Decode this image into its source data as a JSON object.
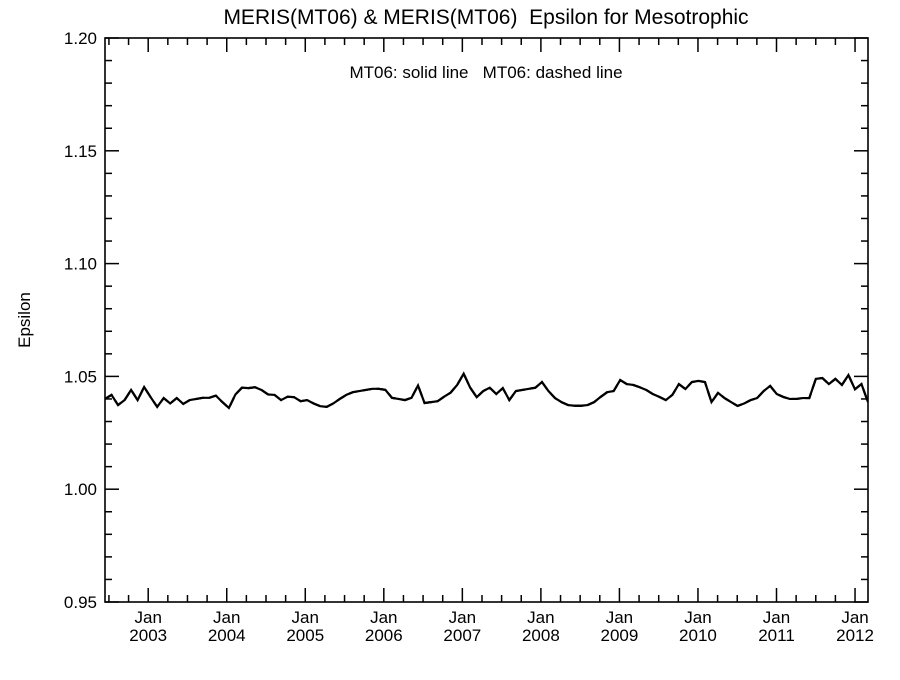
{
  "page": {
    "background": "#ffffff",
    "foreground": "#000000"
  },
  "chart_data": {
    "type": "line",
    "title": "MERIS(MT06) & MERIS(MT06)  Epsilon for Mesotrophic",
    "annotation": "MT06: solid line   MT06: dashed line",
    "xlabel": "",
    "ylabel": "Epsilon",
    "ylim": [
      0.95,
      1.2
    ],
    "xlim": [
      2002.45,
      2012.165
    ],
    "grid": false,
    "legend_position": "top-center-inside-plot",
    "axis_color": "#000000",
    "line_color": "#000000",
    "y_major_ticks": [
      {
        "value": 0.95,
        "label": "0.95"
      },
      {
        "value": 1.0,
        "label": "1.00"
      },
      {
        "value": 1.05,
        "label": "1.05"
      },
      {
        "value": 1.1,
        "label": "1.10"
      },
      {
        "value": 1.15,
        "label": "1.15"
      },
      {
        "value": 1.2,
        "label": "1.20"
      }
    ],
    "y_minor_step": 0.01,
    "x_major_ticks": [
      {
        "t": 2003,
        "month": "Jan",
        "year": "2003"
      },
      {
        "t": 2004,
        "month": "Jan",
        "year": "2004"
      },
      {
        "t": 2005,
        "month": "Jan",
        "year": "2005"
      },
      {
        "t": 2006,
        "month": "Jan",
        "year": "2006"
      },
      {
        "t": 2007,
        "month": "Jan",
        "year": "2007"
      },
      {
        "t": 2008,
        "month": "Jan",
        "year": "2008"
      },
      {
        "t": 2009,
        "month": "Jan",
        "year": "2009"
      },
      {
        "t": 2010,
        "month": "Jan",
        "year": "2010"
      },
      {
        "t": 2011,
        "month": "Jan",
        "year": "2011"
      },
      {
        "t": 2012,
        "month": "Jan",
        "year": "2012"
      }
    ],
    "x_minor_step": 0.25,
    "x_start": 2002.45,
    "x_step_years": 0.083034,
    "months_start": "2002-06",
    "series": [
      {
        "name": "MT06",
        "style": "solid",
        "values": [
          1.04,
          1.0418,
          1.0373,
          1.0395,
          1.044,
          1.0395,
          1.0453,
          1.0408,
          1.0365,
          1.0404,
          1.038,
          1.0404,
          1.0378,
          1.0395,
          1.04,
          1.0405,
          1.0405,
          1.0415,
          1.0386,
          1.036,
          1.042,
          1.045,
          1.0448,
          1.0452,
          1.044,
          1.042,
          1.0418,
          1.0395,
          1.041,
          1.0408,
          1.039,
          1.0395,
          1.038,
          1.0368,
          1.0365,
          1.038,
          1.04,
          1.0418,
          1.043,
          1.0435,
          1.044,
          1.0445,
          1.0445,
          1.044,
          1.0405,
          1.04,
          1.0395,
          1.0405,
          1.046,
          1.0382,
          1.0386,
          1.039,
          1.041,
          1.0428,
          1.0462,
          1.0512,
          1.045,
          1.0408,
          1.0435,
          1.045,
          1.0422,
          1.0448,
          1.0395,
          1.0435,
          1.044,
          1.0445,
          1.045,
          1.0475,
          1.0435,
          1.0404,
          1.0386,
          1.0373,
          1.037,
          1.037,
          1.0373,
          1.0386,
          1.0409,
          1.043,
          1.0435,
          1.0484,
          1.0466,
          1.0462,
          1.0452,
          1.044,
          1.0422,
          1.0409,
          1.0395,
          1.0418,
          1.0466,
          1.0444,
          1.0475,
          1.048,
          1.0475,
          1.0386,
          1.0427,
          1.0404,
          1.0386,
          1.0369,
          1.038,
          1.0395,
          1.0404,
          1.0435,
          1.0458,
          1.0422,
          1.0409,
          1.04,
          1.04,
          1.0404,
          1.0404,
          1.0489,
          1.0493,
          1.0466,
          1.0489,
          1.0462,
          1.0506,
          1.0443,
          1.0466,
          1.0386
        ]
      },
      {
        "name": "MT06",
        "style": "dashed",
        "same_values_as_series": 0,
        "note": "identical dataset; dashed line overlaps the solid line exactly"
      }
    ]
  }
}
